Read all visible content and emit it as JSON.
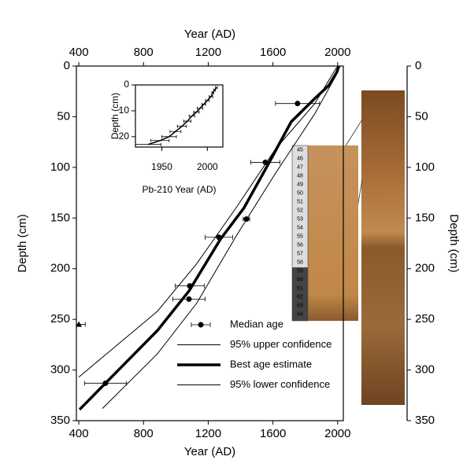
{
  "chart_data": [
    {
      "type": "line",
      "xlabel": "Year (AD)",
      "x2label": "Year (AD)",
      "ylabel": "Depth (cm)",
      "y2label": "Depth (cm)",
      "xlim": [
        385,
        2035
      ],
      "xticks": [
        400,
        800,
        1200,
        1600,
        2000
      ],
      "ylim": [
        0,
        350
      ],
      "yticks": [
        0,
        50,
        100,
        150,
        200,
        250,
        300,
        350
      ],
      "y2lim": [
        0,
        350
      ],
      "y2ticks": [
        0,
        50,
        100,
        150,
        200,
        250,
        300,
        350
      ],
      "series": [
        {
          "name": "Median age",
          "color": "#000000",
          "marker": "circle",
          "x": [
            1752,
            1553,
            1436,
            1266,
            1086,
            1081,
            565
          ],
          "y": [
            37,
            95,
            151,
            169,
            217,
            230,
            313
          ],
          "xerr": [
            136,
            90,
            20,
            85,
            90,
            100,
            130
          ]
        },
        {
          "name": "95% upper confidence",
          "color": "#000000",
          "line_width": 1,
          "x": [
            400,
            886,
            1129,
            1372,
            1615,
            1859,
            1995
          ],
          "y": [
            307,
            242,
            195,
            140,
            82,
            37,
            1
          ]
        },
        {
          "name": "Best age estimate",
          "color": "#000000",
          "line_width": 3.5,
          "x": [
            405,
            565,
            886,
            1081,
            1275,
            1421,
            1567,
            1713,
            1859,
            1946,
            1995,
            2008
          ],
          "y": [
            339,
            313,
            261,
            222,
            171,
            140,
            98,
            55,
            32,
            19,
            6,
            0
          ]
        },
        {
          "name": "95% lower confidence",
          "color": "#000000",
          "line_width": 1,
          "x": [
            546,
            886,
            1129,
            1372,
            1615,
            1859,
            2005
          ],
          "y": [
            338,
            284,
            234,
            168,
            106,
            47,
            5
          ]
        },
        {
          "color": "#000000",
          "marker": "triangle",
          "x": [
            400
          ],
          "y": [
            255
          ],
          "xerr": [
            40
          ]
        }
      ]
    },
    {
      "type": "scatter",
      "xlabel": "Pb-210 Year (AD)",
      "ylabel": "Depth (cm)",
      "xlim": [
        1921,
        2017
      ],
      "xticks": [
        1950,
        2000
      ],
      "ylim": [
        0,
        24
      ],
      "yticks": [
        0,
        10,
        20
      ],
      "series": [
        {
          "color": "#000000",
          "line_width": 1.5,
          "x": [
            2010,
            2008,
            2006,
            2004,
            2000,
            1996,
            1992,
            1988,
            1983,
            1978,
            1972,
            1965,
            1958,
            1948,
            1935
          ],
          "y": [
            1,
            2,
            3,
            4.5,
            6,
            7.5,
            9,
            10.5,
            12,
            14,
            16,
            18,
            20,
            21.5,
            23
          ],
          "xerr": [
            1,
            1,
            1,
            2,
            2,
            2,
            3,
            3,
            3,
            4,
            5,
            6,
            8,
            10,
            14
          ]
        }
      ]
    }
  ],
  "core_photo": {
    "ruler_labels": [
      45,
      46,
      47,
      48,
      49,
      50,
      51,
      52,
      53,
      54,
      55,
      56,
      57,
      58,
      59,
      60,
      61,
      62,
      63,
      64
    ]
  }
}
